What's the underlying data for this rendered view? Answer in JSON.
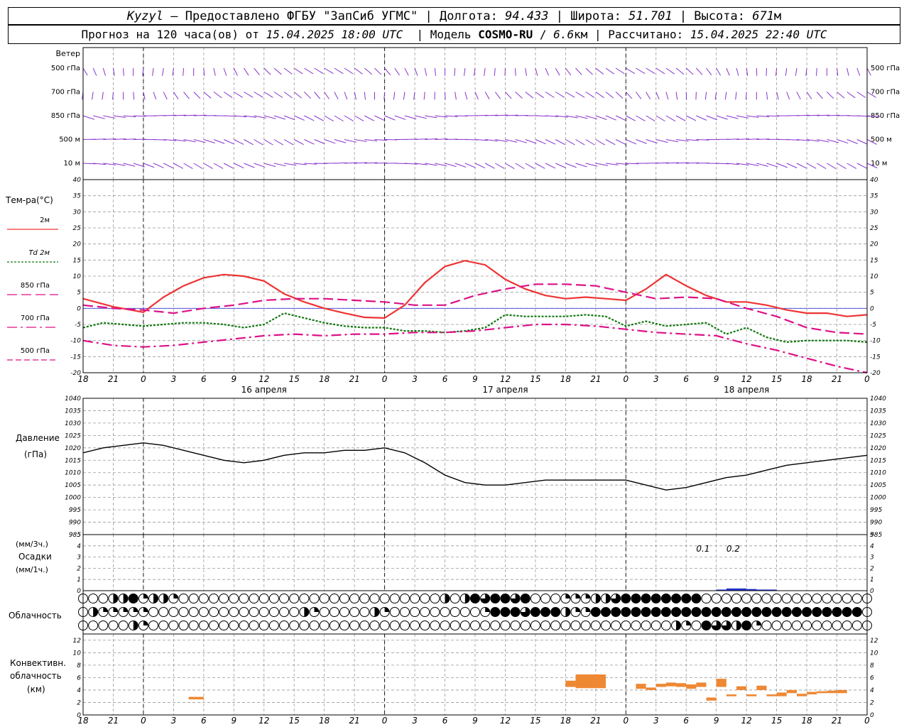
{
  "header": {
    "station": "Kyzyl",
    "provider": "Предоставлено ФГБУ \"ЗапСиб УГМС\"",
    "lon_label": "Долгота:",
    "lon": "94.433",
    "lat_label": "Широта:",
    "lat": "51.701",
    "alt_label": "Высота:",
    "alt": "671",
    "alt_unit": "м",
    "forecast_prefix": "Прогноз на 120 часа(ов) от",
    "forecast_time": "15.04.2025 18:00 UTC",
    "model_label": "Модель",
    "model": "COSMO-RU",
    "resolution": "6.6",
    "res_unit": "км",
    "computed_label": "Рассчитано:",
    "computed_time": "15.04.2025 22:40 UTC"
  },
  "labels": {
    "wind": "Ветер",
    "wind_levels": [
      "500 гПа",
      "700 гПа",
      "850 гПа",
      "500 м",
      "10  м"
    ],
    "temp": "Тем-ра(°C)",
    "temp_legend": [
      "2м",
      "Td  2м",
      "850 гПа",
      "700 гПа",
      "500 гПа"
    ],
    "pressure": "Давление",
    "pressure_unit": "(гПа)",
    "precip_unit1": "(мм/3ч.)",
    "precip": "Осадки",
    "precip_unit2": "(мм/1ч.)",
    "cloud": "Облачность",
    "conv1": "Конвективн.",
    "conv2": "облачность",
    "conv3": "(км)",
    "day_labels": [
      "16 апреля",
      "17 апреля",
      "18 апреля"
    ],
    "precip_annotations": [
      "0.1",
      "0.2"
    ]
  },
  "colors": {
    "t2m": "#ee3333",
    "td2m": "#117711",
    "t850": "#dd1188",
    "t700": "#dd1188",
    "t500": "#dd1188",
    "wind": "#8833cc",
    "pressure": "#000000",
    "conv": "#ee8833",
    "precip": "#2233cc",
    "zero_line": "#5555dd"
  },
  "chart_data": [
    {
      "type": "line",
      "title": "Тем-ра(°C)",
      "x_unit": "hours from 15.04.2025 18:00 UTC",
      "xlim": [
        0,
        78
      ],
      "x_tick_labels": [
        "18",
        "21",
        "0",
        "3",
        "6",
        "9",
        "12",
        "15",
        "18",
        "21",
        "0",
        "3",
        "6",
        "9",
        "12",
        "15",
        "18",
        "21",
        "0",
        "3",
        "6",
        "9",
        "12",
        "15",
        "18",
        "21",
        "0"
      ],
      "ylim": [
        -20,
        40
      ],
      "yticks": [
        -20,
        -15,
        -10,
        -5,
        0,
        5,
        10,
        15,
        20,
        25,
        30,
        35,
        40
      ],
      "series": [
        {
          "name": "2м",
          "style": "solid",
          "x": [
            0,
            3,
            6,
            8,
            10,
            12,
            14,
            16,
            18,
            20,
            22,
            24,
            26,
            28,
            30,
            32,
            34,
            36,
            38,
            40,
            42,
            44,
            46,
            48,
            50,
            52,
            54,
            56,
            58,
            60,
            62,
            64,
            66,
            68,
            70,
            72,
            74,
            76,
            78
          ],
          "values": [
            3,
            0.5,
            -1.2,
            3.5,
            7,
            9.5,
            10.5,
            10,
            8.5,
            4.5,
            2,
            0,
            -1.5,
            -2.8,
            -3,
            1,
            8,
            13,
            14.8,
            13.5,
            9,
            6,
            4,
            3,
            3.5,
            3,
            2.5,
            6,
            10.5,
            7,
            4,
            2,
            2,
            1,
            -0.5,
            -1.5,
            -1.5,
            -2.5,
            -2
          ]
        },
        {
          "name": "Td  2м",
          "style": "dotted",
          "x": [
            0,
            2,
            4,
            6,
            8,
            10,
            12,
            14,
            16,
            18,
            20,
            22,
            24,
            26,
            28,
            30,
            32,
            34,
            36,
            38,
            40,
            42,
            44,
            46,
            48,
            50,
            52,
            54,
            56,
            58,
            60,
            62,
            64,
            66,
            68,
            70,
            72,
            74,
            76,
            78
          ],
          "values": [
            -6,
            -4.5,
            -5,
            -5.5,
            -5,
            -4.5,
            -4.5,
            -5,
            -6,
            -5,
            -1.5,
            -3,
            -4.5,
            -5.5,
            -6,
            -6,
            -7,
            -7,
            -7.5,
            -7,
            -6,
            -2,
            -2.5,
            -2.5,
            -2.5,
            -2,
            -2.5,
            -5.5,
            -4,
            -5.5,
            -5,
            -4.5,
            -8,
            -6,
            -9,
            -10.5,
            -10,
            -10,
            -10,
            -10.5
          ]
        },
        {
          "name": "850 гПа",
          "style": "dash",
          "x": [
            0,
            3,
            6,
            9,
            12,
            15,
            18,
            21,
            24,
            27,
            30,
            33,
            36,
            39,
            42,
            45,
            48,
            51,
            54,
            57,
            60,
            63,
            66,
            69,
            72,
            75,
            78
          ],
          "values": [
            1,
            0,
            -0.5,
            -1.5,
            0,
            1,
            2.5,
            3,
            3,
            2.5,
            2,
            1,
            1,
            4,
            6,
            7.5,
            7.5,
            7,
            5,
            3,
            3.5,
            3,
            0,
            -2.5,
            -6,
            -7.5,
            -8
          ]
        },
        {
          "name": "700 гПа",
          "style": "dashdot",
          "x": [
            0,
            3,
            6,
            9,
            12,
            15,
            18,
            21,
            24,
            27,
            30,
            33,
            36,
            39,
            42,
            45,
            48,
            51,
            54,
            57,
            60,
            63,
            66,
            69,
            72,
            75,
            78
          ],
          "values": [
            -10,
            -11.5,
            -12,
            -11.5,
            -10.5,
            -9.5,
            -8.5,
            -8,
            -8.5,
            -8,
            -8,
            -7.5,
            -7.5,
            -7,
            -6,
            -5,
            -5,
            -5.5,
            -6.5,
            -7.5,
            -8,
            -8.5,
            -11,
            -13,
            -15.5,
            -18,
            -20
          ]
        }
      ]
    },
    {
      "type": "line",
      "title": "Давление",
      "ylabel": "(гПа)",
      "xlim": [
        0,
        78
      ],
      "ylim": [
        985,
        1040
      ],
      "yticks": [
        985,
        990,
        995,
        1000,
        1005,
        1010,
        1015,
        1020,
        1025,
        1030,
        1035,
        1040
      ],
      "series": [
        {
          "name": "",
          "x": [
            0,
            2,
            4,
            6,
            8,
            10,
            12,
            14,
            16,
            18,
            20,
            22,
            24,
            26,
            28,
            30,
            32,
            34,
            36,
            38,
            40,
            42,
            44,
            46,
            48,
            50,
            52,
            54,
            56,
            58,
            60,
            62,
            64,
            66,
            68,
            70,
            72,
            74,
            76,
            78
          ],
          "values": [
            1018,
            1020,
            1021,
            1022,
            1021,
            1019,
            1017,
            1015,
            1014,
            1015,
            1017,
            1018,
            1018,
            1019,
            1019,
            1020,
            1018,
            1014,
            1009,
            1006,
            1005,
            1005,
            1006,
            1007,
            1007,
            1007,
            1007,
            1007,
            1005,
            1003,
            1004,
            1006,
            1008,
            1009,
            1011,
            1013,
            1014,
            1015,
            1016,
            1017
          ]
        }
      ]
    },
    {
      "type": "bar",
      "title": "Осадки",
      "xlim": [
        0,
        78
      ],
      "ylim": [
        0,
        5
      ],
      "yticks": [
        0,
        1,
        2,
        3,
        4,
        5
      ],
      "series": [
        {
          "name": "",
          "x": [
            63,
            64,
            65,
            66,
            67,
            68
          ],
          "values": [
            0.1,
            0.2,
            0.2,
            0.15,
            0.1,
            0.1
          ]
        }
      ],
      "annotations": [
        {
          "x": 61,
          "text": "0.1"
        },
        {
          "x": 64,
          "text": "0.2"
        }
      ]
    },
    {
      "type": "scatter",
      "title": "Облачность",
      "xlim": [
        0,
        78
      ],
      "rows": [
        {
          "level": "top",
          "x": [
            3,
            4,
            5,
            6,
            7,
            8,
            9,
            22,
            36,
            38,
            39,
            40,
            41,
            42,
            43,
            44,
            47,
            48,
            49,
            50,
            51,
            52,
            53,
            54,
            55,
            56,
            57,
            58,
            59,
            60,
            61
          ],
          "octas": [
            4,
            4,
            8,
            2,
            4,
            4,
            2,
            0,
            4,
            4,
            8,
            6,
            8,
            8,
            6,
            8,
            0,
            2,
            2,
            2,
            4,
            4,
            6,
            8,
            8,
            8,
            8,
            8,
            8,
            8,
            8
          ]
        },
        {
          "level": "mid",
          "x": [
            1,
            2,
            3,
            4,
            5,
            6,
            22,
            23,
            29,
            30,
            40,
            41,
            42,
            43,
            44,
            45,
            46,
            47,
            48,
            49,
            50,
            51,
            52,
            53,
            54,
            55,
            56,
            57,
            58,
            59,
            60,
            61,
            62,
            63,
            64,
            65,
            66,
            67,
            68,
            69,
            70,
            71,
            72,
            73,
            74,
            75,
            76,
            77
          ],
          "octas": [
            4,
            2,
            2,
            2,
            2,
            2,
            4,
            2,
            4,
            2,
            2,
            8,
            8,
            8,
            6,
            8,
            8,
            8,
            4,
            2,
            2,
            8,
            8,
            8,
            8,
            8,
            8,
            8,
            8,
            8,
            8,
            8,
            8,
            8,
            8,
            8,
            8,
            8,
            8,
            8,
            8,
            8,
            8,
            8,
            8,
            8,
            8,
            8
          ]
        },
        {
          "level": "low",
          "x": [
            5,
            6,
            59,
            60,
            62,
            63,
            64,
            65,
            66,
            67
          ],
          "octas": [
            4,
            2,
            4,
            2,
            8,
            6,
            6,
            4,
            8,
            2
          ]
        }
      ]
    },
    {
      "type": "bar",
      "title": "Конвективн. облачность",
      "ylabel": "(км)",
      "xlim": [
        0,
        78
      ],
      "ylim": [
        0,
        13
      ],
      "yticks": [
        0,
        2,
        4,
        6,
        8,
        10,
        12
      ],
      "series": [
        {
          "name": "",
          "x0": [
            10.5,
            48,
            49,
            55,
            56,
            57,
            58,
            59,
            60,
            61,
            62,
            63,
            64,
            65,
            66,
            67,
            68,
            69,
            70,
            71,
            72,
            73,
            74,
            75
          ],
          "x1": [
            12,
            49,
            52,
            56,
            57,
            58,
            59,
            60,
            61,
            62,
            63,
            64,
            65,
            66,
            67,
            68,
            69,
            70,
            71,
            72,
            73,
            74,
            75,
            76
          ],
          "bottom": [
            2.5,
            4.5,
            4.3,
            4.2,
            4.0,
            4.5,
            4.6,
            4.5,
            4.2,
            4.5,
            2.3,
            4.5,
            3.0,
            4.0,
            3.0,
            4.0,
            3.0,
            3.0,
            3.5,
            3.0,
            3.3,
            3.5,
            3.5,
            3.5
          ],
          "top": [
            2.9,
            5.5,
            6.5,
            5.0,
            4.4,
            5.0,
            5.2,
            5.1,
            4.9,
            5.2,
            2.8,
            5.8,
            3.3,
            4.6,
            3.3,
            4.7,
            3.3,
            3.6,
            4.0,
            3.4,
            3.7,
            3.8,
            3.9,
            4.0
          ]
        }
      ]
    }
  ]
}
